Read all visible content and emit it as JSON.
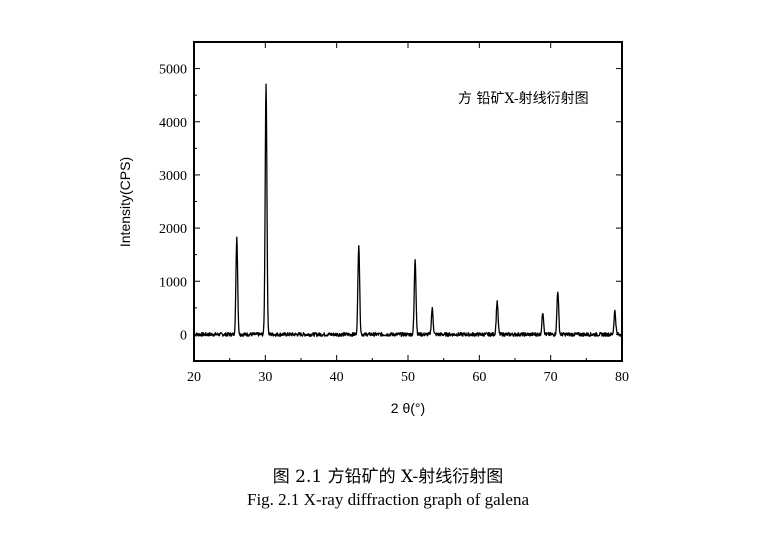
{
  "chart_data": {
    "type": "line",
    "title": "",
    "xlabel": "2 θ(°)",
    "ylabel": "Intensity(CPS)",
    "xlim": [
      20,
      80
    ],
    "ylim": [
      -500,
      5500
    ],
    "x_ticks": [
      20,
      30,
      40,
      50,
      60,
      70,
      80
    ],
    "y_ticks": [
      0,
      1000,
      2000,
      3000,
      4000,
      5000
    ],
    "grid": false,
    "legend": {
      "text": "方 铅矿X-射线衍射图",
      "placement": "top-right"
    },
    "series": [
      {
        "baseline": 0,
        "noise_amplitude": 35,
        "peaks": [
          {
            "x": 26.0,
            "y": 1830
          },
          {
            "x": 30.1,
            "y": 4720
          },
          {
            "x": 43.1,
            "y": 1700
          },
          {
            "x": 51.0,
            "y": 1420
          },
          {
            "x": 53.4,
            "y": 480
          },
          {
            "x": 62.5,
            "y": 620
          },
          {
            "x": 68.9,
            "y": 420
          },
          {
            "x": 71.0,
            "y": 820
          },
          {
            "x": 79.0,
            "y": 440
          }
        ]
      }
    ]
  },
  "caption": {
    "chinese": "图 2.1 方铅矿的 X-射线衍射图",
    "english": "Fig. 2.1 X-ray diffraction graph of galena"
  },
  "colors": {
    "line": "#000000",
    "frame": "#000000",
    "background": "#ffffff"
  }
}
